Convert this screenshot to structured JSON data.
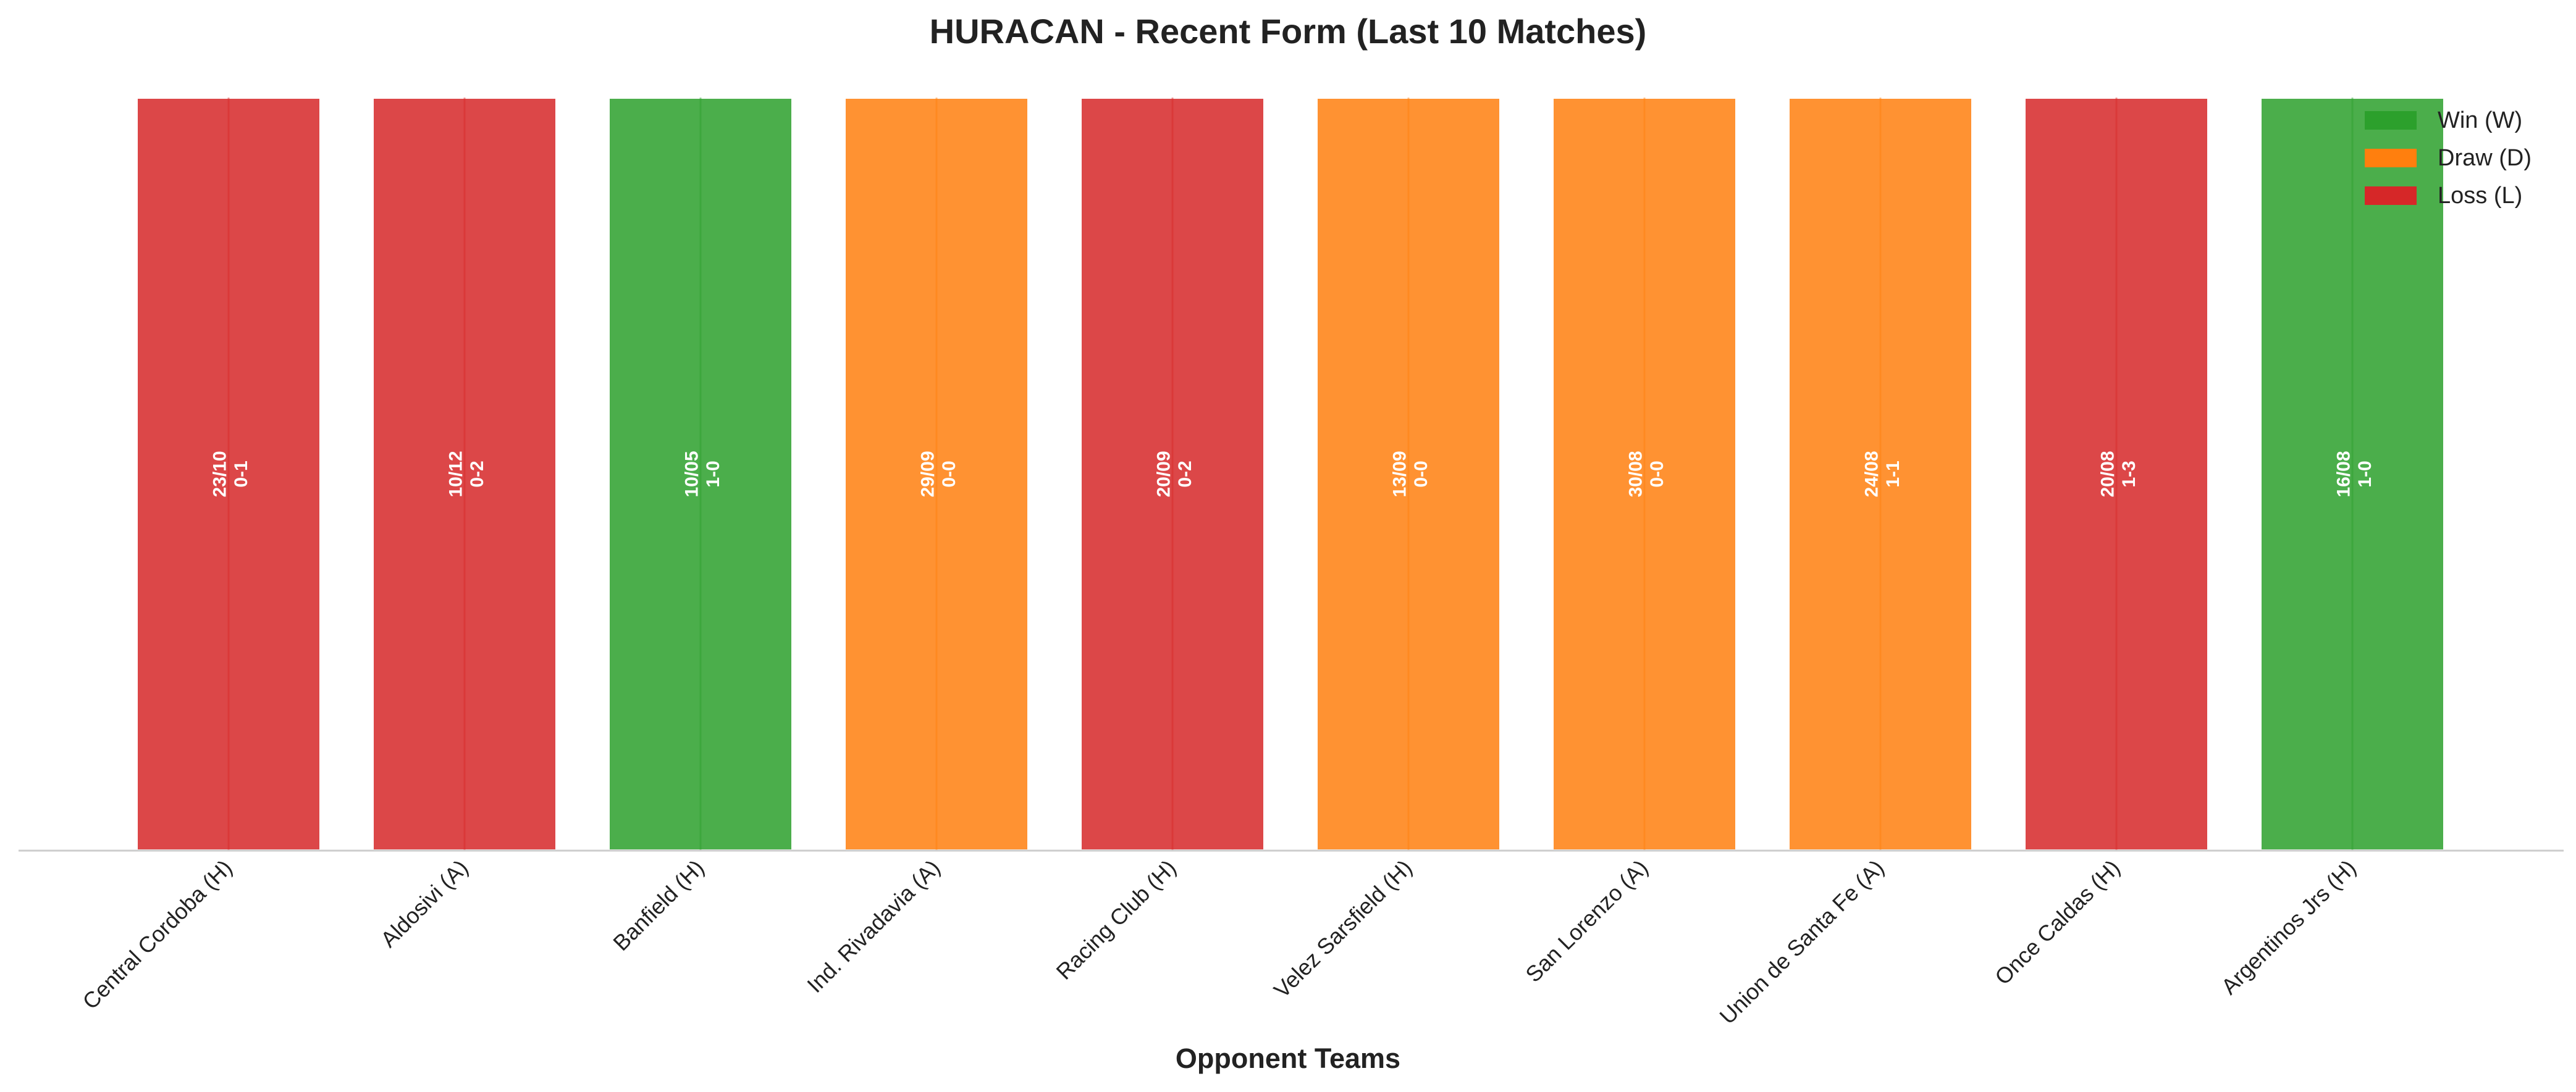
{
  "chart_data": {
    "type": "bar",
    "title": "HURACAN - Recent Form (Last 10 Matches)",
    "xlabel": "Opponent Teams",
    "ylabel": "",
    "ylim": [
      0,
      1
    ],
    "grid": false,
    "legend_position": "top-right",
    "legend": [
      {
        "result": "W",
        "label": "Win (W)",
        "color": "#2ca02c"
      },
      {
        "result": "D",
        "label": "Draw (D)",
        "color": "#ff7f0e"
      },
      {
        "result": "L",
        "label": "Loss (L)",
        "color": "#d62728"
      }
    ],
    "categories": [
      "Central Cordoba (H)",
      "Aldosivi (A)",
      "Banfield (H)",
      "Ind. Rivadavia (A)",
      "Racing Club (H)",
      "Velez Sarsfield (H)",
      "San Lorenzo (A)",
      "Union de Santa Fe (A)",
      "Once Caldas (H)",
      "Argentinos Jrs (H)"
    ],
    "values": [
      1,
      1,
      1,
      1,
      1,
      1,
      1,
      1,
      1,
      1
    ],
    "results": [
      "L",
      "L",
      "W",
      "D",
      "L",
      "D",
      "D",
      "D",
      "L",
      "W"
    ],
    "dates": [
      "23/10",
      "10/12",
      "10/05",
      "29/09",
      "20/09",
      "13/09",
      "30/08",
      "24/08",
      "20/08",
      "16/08"
    ],
    "scores": [
      "0-1",
      "0-2",
      "1-0",
      "0-0",
      "0-2",
      "0-0",
      "0-0",
      "1-1",
      "1-3",
      "1-0"
    ]
  }
}
